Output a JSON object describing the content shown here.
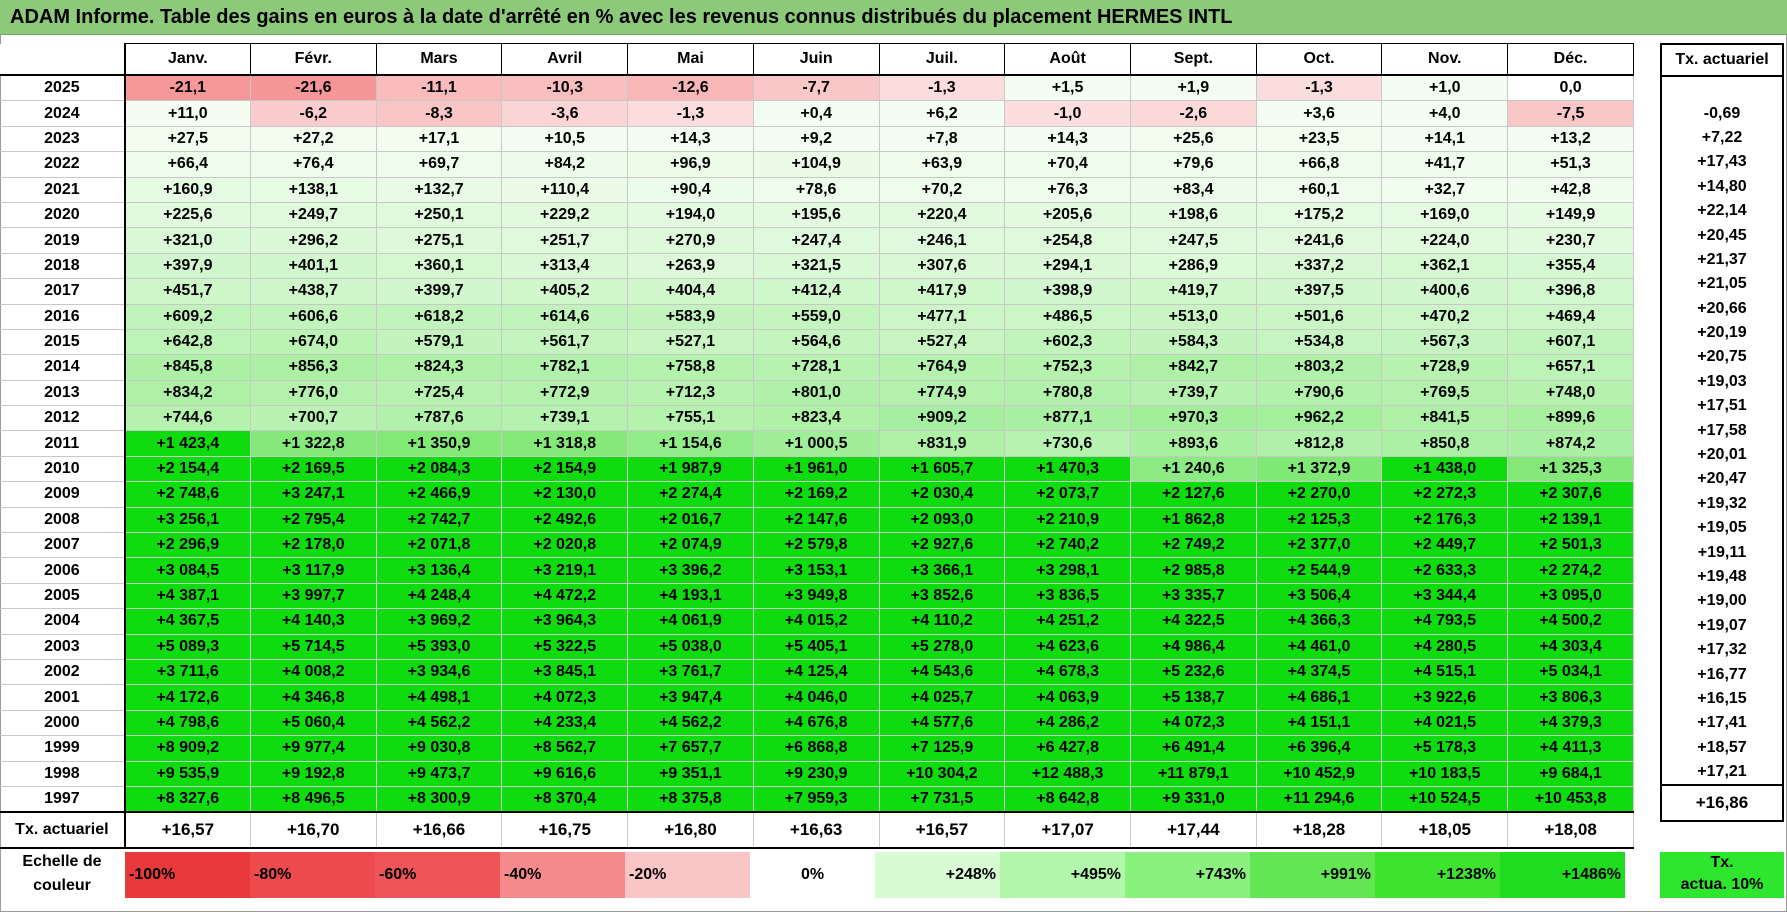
{
  "title": "ADAM Informe. Table des gains en euros à la date d'arrêté en % avec les revenus connus distribués du placement HERMES INTL",
  "months": [
    "Janv.",
    "Févr.",
    "Mars",
    "Avril",
    "Mai",
    "Juin",
    "Juil.",
    "Août",
    "Sept.",
    "Oct.",
    "Nov.",
    "Déc."
  ],
  "tx_header": "Tx. actuariel",
  "rows": [
    {
      "year": "2025",
      "values": [
        "-21,1",
        "-21,6",
        "-11,1",
        "-10,3",
        "-12,6",
        "-7,7",
        "-1,3",
        "+1,5",
        "+1,9",
        "-1,3",
        "+1,0",
        "0,0"
      ],
      "tx": ""
    },
    {
      "year": "2024",
      "values": [
        "+11,0",
        "-6,2",
        "-8,3",
        "-3,6",
        "-1,3",
        "+0,4",
        "+6,2",
        "-1,0",
        "-2,6",
        "+3,6",
        "+4,0",
        "-7,5"
      ],
      "tx": "-0,69"
    },
    {
      "year": "2023",
      "values": [
        "+27,5",
        "+27,2",
        "+17,1",
        "+10,5",
        "+14,3",
        "+9,2",
        "+7,8",
        "+14,3",
        "+25,6",
        "+23,5",
        "+14,1",
        "+13,2"
      ],
      "tx": "+7,22"
    },
    {
      "year": "2022",
      "values": [
        "+66,4",
        "+76,4",
        "+69,7",
        "+84,2",
        "+96,9",
        "+104,9",
        "+63,9",
        "+70,4",
        "+79,6",
        "+66,8",
        "+41,7",
        "+51,3"
      ],
      "tx": "+17,43"
    },
    {
      "year": "2021",
      "values": [
        "+160,9",
        "+138,1",
        "+132,7",
        "+110,4",
        "+90,4",
        "+78,6",
        "+70,2",
        "+76,3",
        "+83,4",
        "+60,1",
        "+32,7",
        "+42,8"
      ],
      "tx": "+14,80"
    },
    {
      "year": "2020",
      "values": [
        "+225,6",
        "+249,7",
        "+250,1",
        "+229,2",
        "+194,0",
        "+195,6",
        "+220,4",
        "+205,6",
        "+198,6",
        "+175,2",
        "+169,0",
        "+149,9"
      ],
      "tx": "+22,14"
    },
    {
      "year": "2019",
      "values": [
        "+321,0",
        "+296,2",
        "+275,1",
        "+251,7",
        "+270,9",
        "+247,4",
        "+246,1",
        "+254,8",
        "+247,5",
        "+241,6",
        "+224,0",
        "+230,7"
      ],
      "tx": "+20,45"
    },
    {
      "year": "2018",
      "values": [
        "+397,9",
        "+401,1",
        "+360,1",
        "+313,4",
        "+263,9",
        "+321,5",
        "+307,6",
        "+294,1",
        "+286,9",
        "+337,2",
        "+362,1",
        "+355,4"
      ],
      "tx": "+21,37"
    },
    {
      "year": "2017",
      "values": [
        "+451,7",
        "+438,7",
        "+399,7",
        "+405,2",
        "+404,4",
        "+412,4",
        "+417,9",
        "+398,9",
        "+419,7",
        "+397,5",
        "+400,6",
        "+396,8"
      ],
      "tx": "+21,05"
    },
    {
      "year": "2016",
      "values": [
        "+609,2",
        "+606,6",
        "+618,2",
        "+614,6",
        "+583,9",
        "+559,0",
        "+477,1",
        "+486,5",
        "+513,0",
        "+501,6",
        "+470,2",
        "+469,4"
      ],
      "tx": "+20,66"
    },
    {
      "year": "2015",
      "values": [
        "+642,8",
        "+674,0",
        "+579,1",
        "+561,7",
        "+527,1",
        "+564,6",
        "+527,4",
        "+602,3",
        "+584,3",
        "+534,8",
        "+567,3",
        "+607,1"
      ],
      "tx": "+20,19"
    },
    {
      "year": "2014",
      "values": [
        "+845,8",
        "+856,3",
        "+824,3",
        "+782,1",
        "+758,8",
        "+728,1",
        "+764,9",
        "+752,3",
        "+842,7",
        "+803,2",
        "+728,9",
        "+657,1"
      ],
      "tx": "+20,75"
    },
    {
      "year": "2013",
      "values": [
        "+834,2",
        "+776,0",
        "+725,4",
        "+772,9",
        "+712,3",
        "+801,0",
        "+774,9",
        "+780,8",
        "+739,7",
        "+790,6",
        "+769,5",
        "+748,0"
      ],
      "tx": "+19,03"
    },
    {
      "year": "2012",
      "values": [
        "+744,6",
        "+700,7",
        "+787,6",
        "+739,1",
        "+755,1",
        "+823,4",
        "+909,2",
        "+877,1",
        "+970,3",
        "+962,2",
        "+841,5",
        "+899,6"
      ],
      "tx": "+17,51"
    },
    {
      "year": "2011",
      "values": [
        "+1 423,4",
        "+1 322,8",
        "+1 350,9",
        "+1 318,8",
        "+1 154,6",
        "+1 000,5",
        "+831,9",
        "+730,6",
        "+893,6",
        "+812,8",
        "+850,8",
        "+874,2"
      ],
      "tx": "+17,58"
    },
    {
      "year": "2010",
      "values": [
        "+2 154,4",
        "+2 169,5",
        "+2 084,3",
        "+2 154,9",
        "+1 987,9",
        "+1 961,0",
        "+1 605,7",
        "+1 470,3",
        "+1 240,6",
        "+1 372,9",
        "+1 438,0",
        "+1 325,3"
      ],
      "tx": "+20,01"
    },
    {
      "year": "2009",
      "values": [
        "+2 748,6",
        "+3 247,1",
        "+2 466,9",
        "+2 130,0",
        "+2 274,4",
        "+2 169,2",
        "+2 030,4",
        "+2 073,7",
        "+2 127,6",
        "+2 270,0",
        "+2 272,3",
        "+2 307,6"
      ],
      "tx": "+20,47"
    },
    {
      "year": "2008",
      "values": [
        "+3 256,1",
        "+2 795,4",
        "+2 742,7",
        "+2 492,6",
        "+2 016,7",
        "+2 147,6",
        "+2 093,0",
        "+2 210,9",
        "+1 862,8",
        "+2 125,3",
        "+2 176,3",
        "+2 139,1"
      ],
      "tx": "+19,32"
    },
    {
      "year": "2007",
      "values": [
        "+2 296,9",
        "+2 178,0",
        "+2 071,8",
        "+2 020,8",
        "+2 074,9",
        "+2 579,8",
        "+2 927,6",
        "+2 740,2",
        "+2 749,2",
        "+2 377,0",
        "+2 449,7",
        "+2 501,3"
      ],
      "tx": "+19,05"
    },
    {
      "year": "2006",
      "values": [
        "+3 084,5",
        "+3 117,9",
        "+3 136,4",
        "+3 219,1",
        "+3 396,2",
        "+3 153,1",
        "+3 366,1",
        "+3 298,1",
        "+2 985,8",
        "+2 544,9",
        "+2 633,3",
        "+2 274,2"
      ],
      "tx": "+19,11"
    },
    {
      "year": "2005",
      "values": [
        "+4 387,1",
        "+3 997,7",
        "+4 248,4",
        "+4 472,2",
        "+4 193,1",
        "+3 949,8",
        "+3 852,6",
        "+3 836,5",
        "+3 335,7",
        "+3 506,4",
        "+3 344,4",
        "+3 095,0"
      ],
      "tx": "+19,48"
    },
    {
      "year": "2004",
      "values": [
        "+4 367,5",
        "+4 140,3",
        "+3 969,2",
        "+3 964,3",
        "+4 061,9",
        "+4 015,2",
        "+4 110,2",
        "+4 251,2",
        "+4 322,5",
        "+4 366,3",
        "+4 793,5",
        "+4 500,2"
      ],
      "tx": "+19,00"
    },
    {
      "year": "2003",
      "values": [
        "+5 089,3",
        "+5 714,5",
        "+5 393,0",
        "+5 322,5",
        "+5 038,0",
        "+5 405,1",
        "+5 278,0",
        "+4 623,6",
        "+4 986,4",
        "+4 461,0",
        "+4 280,5",
        "+4 303,4"
      ],
      "tx": "+19,07"
    },
    {
      "year": "2002",
      "values": [
        "+3 711,6",
        "+4 008,2",
        "+3 934,6",
        "+3 845,1",
        "+3 761,7",
        "+4 125,4",
        "+4 543,6",
        "+4 678,3",
        "+5 232,6",
        "+4 374,5",
        "+4 515,1",
        "+5 034,1"
      ],
      "tx": "+17,32"
    },
    {
      "year": "2001",
      "values": [
        "+4 172,6",
        "+4 346,8",
        "+4 498,1",
        "+4 072,3",
        "+3 947,4",
        "+4 046,0",
        "+4 025,7",
        "+4 063,9",
        "+5 138,7",
        "+4 686,1",
        "+3 922,6",
        "+3 806,3"
      ],
      "tx": "+16,77"
    },
    {
      "year": "2000",
      "values": [
        "+4 798,6",
        "+5 060,4",
        "+4 562,2",
        "+4 233,4",
        "+4 562,2",
        "+4 676,8",
        "+4 577,6",
        "+4 286,2",
        "+4 072,3",
        "+4 151,1",
        "+4 021,5",
        "+4 379,3"
      ],
      "tx": "+16,15"
    },
    {
      "year": "1999",
      "values": [
        "+8 909,2",
        "+9 977,4",
        "+9 030,8",
        "+8 562,7",
        "+7 657,7",
        "+6 868,8",
        "+7 125,9",
        "+6 427,8",
        "+6 491,4",
        "+6 396,4",
        "+5 178,3",
        "+4 411,3"
      ],
      "tx": "+17,41"
    },
    {
      "year": "1998",
      "values": [
        "+9 535,9",
        "+9 192,8",
        "+9 473,7",
        "+9 616,6",
        "+9 351,1",
        "+9 230,9",
        "+10 304,2",
        "+12 488,3",
        "+11 879,1",
        "+10 452,9",
        "+10 183,5",
        "+9 684,1"
      ],
      "tx": "+18,57"
    },
    {
      "year": "1997",
      "values": [
        "+8 327,6",
        "+8 496,5",
        "+8 300,9",
        "+8 370,4",
        "+8 375,8",
        "+7 959,3",
        "+7 731,5",
        "+8 642,8",
        "+9 331,0",
        "+11 294,6",
        "+10 524,5",
        "+10 453,8"
      ],
      "tx": "+17,21"
    }
  ],
  "summary": {
    "label": "Tx. actuariel",
    "values": [
      "+16,57",
      "+16,70",
      "+16,66",
      "+16,75",
      "+16,80",
      "+16,63",
      "+16,57",
      "+17,07",
      "+17,44",
      "+18,28",
      "+18,05",
      "+18,08"
    ],
    "tx": "+16,86"
  },
  "legend": {
    "label_line1": "Echelle de",
    "label_line2": "couleur",
    "items": [
      {
        "label": "-100%",
        "color": "#e8393c"
      },
      {
        "label": "-80%",
        "color": "#ec4a4d"
      },
      {
        "label": "-60%",
        "color": "#ef5558"
      },
      {
        "label": "-40%",
        "color": "#f58a8c"
      },
      {
        "label": "-20%",
        "color": "#fac5c6"
      },
      {
        "label": "0%",
        "color": "#ffffff"
      },
      {
        "label": "+248%",
        "color": "#d8fbd4"
      },
      {
        "label": "+495%",
        "color": "#b3f7ab"
      },
      {
        "label": "+743%",
        "color": "#8af07e"
      },
      {
        "label": "+991%",
        "color": "#62e654"
      },
      {
        "label": "+1238%",
        "color": "#3ee32e"
      },
      {
        "label": "+1486%",
        "color": "#1fdc1f"
      }
    ],
    "tx_line1": "Tx.",
    "tx_line2": "actua. 10%",
    "tx_color": "#2ee62e"
  },
  "colors": {
    "title_bar": "#8cc97a",
    "max_green": "#0fdc0f",
    "neg_red": "#f08a8c"
  }
}
